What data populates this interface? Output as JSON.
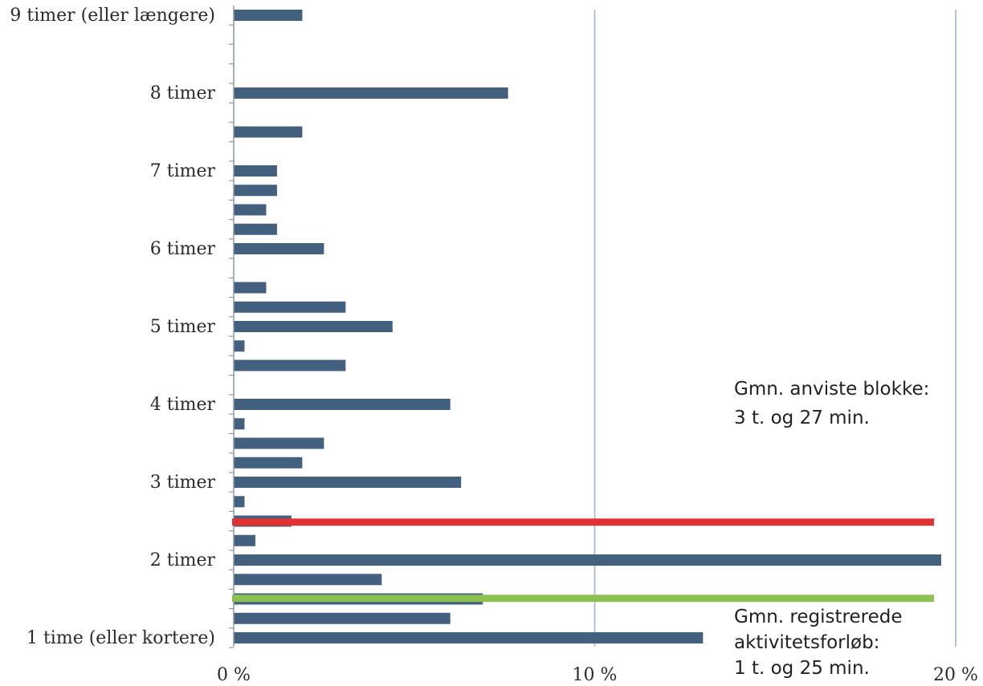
{
  "chart_data": {
    "type": "bar",
    "orientation": "horizontal",
    "title": "",
    "xlabel": "",
    "ylabel": "",
    "xlim": [
      0,
      20
    ],
    "x_ticks": [
      {
        "value": 0,
        "label": "0 %"
      },
      {
        "value": 10,
        "label": "10 %"
      },
      {
        "value": 20,
        "label": "20 %"
      }
    ],
    "y_tick_labels": [
      {
        "slot": 0,
        "label": "1 time (eller kortere)"
      },
      {
        "slot": 4,
        "label": "2 timer"
      },
      {
        "slot": 8,
        "label": "3 timer"
      },
      {
        "slot": 12,
        "label": "4 timer"
      },
      {
        "slot": 16,
        "label": "5 timer"
      },
      {
        "slot": 20,
        "label": "6 timer"
      },
      {
        "slot": 24,
        "label": "7 timer"
      },
      {
        "slot": 28,
        "label": "8 timer"
      },
      {
        "slot": 32,
        "label": "9 timer (eller længere)"
      }
    ],
    "values": [
      13.0,
      6.0,
      6.9,
      4.1,
      19.6,
      0.6,
      1.6,
      0.3,
      6.3,
      1.9,
      2.5,
      0.3,
      6.0,
      0,
      3.1,
      0.3,
      4.4,
      3.1,
      0.9,
      0,
      2.5,
      1.2,
      0.9,
      1.2,
      1.2,
      0,
      1.9,
      0,
      7.6,
      0,
      0,
      0,
      1.9
    ],
    "bar_color": "#44607f",
    "grid": true,
    "reference_lines": [
      {
        "y_slot": 5.95,
        "color": "#e03232",
        "annotation": [
          "Gmn. anviste blokke:",
          "3 t. og 27 min."
        ]
      },
      {
        "y_slot": 2.03,
        "color": "#8cc152",
        "annotation": [
          "Gmn. registrerede",
          "aktivitetsforløb:",
          "1 t. og 25 min."
        ]
      }
    ]
  }
}
